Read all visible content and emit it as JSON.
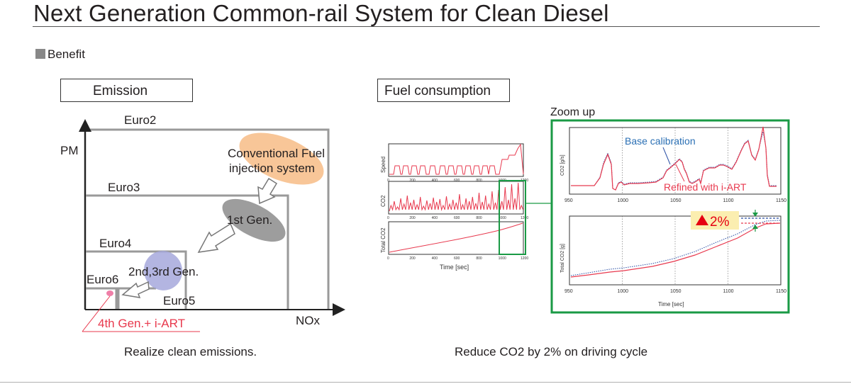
{
  "title": "Next Generation Common-rail System for Clean Diesel",
  "section": "Benefit",
  "emission": {
    "box_label": "Emission",
    "y_axis": "PM",
    "x_axis": "NOx",
    "standards": [
      "Euro2",
      "Euro3",
      "Euro4",
      "Euro5",
      "Euro6"
    ],
    "conventional_line1": "Conventional Fuel",
    "conventional_line2": "injection system",
    "gen1": "1st Gen.",
    "gen23": "2nd,3rd Gen.",
    "gen4": "4th Gen.+ i-ART",
    "caption": "Realize clean emissions."
  },
  "fuel": {
    "box_label": "Fuel consumption",
    "zoom_label": "Zoom up",
    "small_ylabels": [
      "Speed",
      "CO2",
      "Total CO2"
    ],
    "small_xticks": [
      "0",
      "200",
      "400",
      "600",
      "800",
      "1000",
      "1200"
    ],
    "small_xlabel": "Time [sec]",
    "zoom_ylabel_top": "CO2 [g/s]",
    "zoom_ylabel_bottom": "Total CO2 [g]",
    "zoom_xticks": [
      "950",
      "1000",
      "1050",
      "1100",
      "1150"
    ],
    "zoom_xlabel": "Time [sec]",
    "base_label": "Base calibration",
    "refined_label": "Refined with i-ART",
    "reduction": "2%",
    "caption": "Reduce CO2 by 2% on driving cycle"
  },
  "colors": {
    "accent_green": "#1a9a45",
    "refined_red": "#e83a4f",
    "base_blue": "#2a4fa5",
    "conventional_orange": "#f7c08d",
    "gen1_gray": "#8c8c8c",
    "gen23_blue": "#a6a8dc",
    "gen4_pink": "#ef7fa8",
    "reduction_badge": "#fbeeb0",
    "reduction_triangle": "#e60012"
  },
  "icons": [
    "triangle-up-icon"
  ]
}
